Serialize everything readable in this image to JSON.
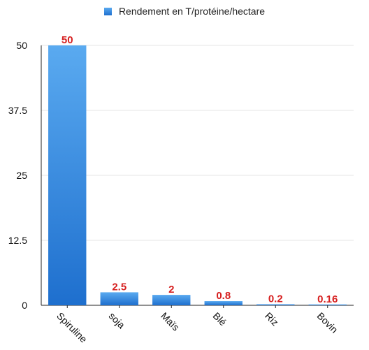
{
  "chart_data": {
    "type": "bar",
    "title": "",
    "xlabel": "",
    "ylabel": "",
    "categories": [
      "Spiruline",
      "soja",
      "Maïs",
      "Blé",
      "Riz",
      "Bovin"
    ],
    "series": [
      {
        "name": "Rendement en T/protéine/hectare",
        "values": [
          50,
          2.5,
          2,
          0.8,
          0.2,
          0.16
        ]
      }
    ],
    "data_labels": [
      "50",
      "2.5",
      "2",
      "0.8",
      "0.2",
      "0.16"
    ],
    "ylim": [
      0,
      50
    ],
    "yticks": [
      "0",
      "12.5",
      "25",
      "37.5",
      "50"
    ],
    "grid": true,
    "legend_position": "top",
    "colors": {
      "bar_top": "#5aaaf0",
      "bar_bottom": "#1e6fce",
      "data_label": "#d61f1f",
      "grid": "#e4e4e4"
    }
  }
}
